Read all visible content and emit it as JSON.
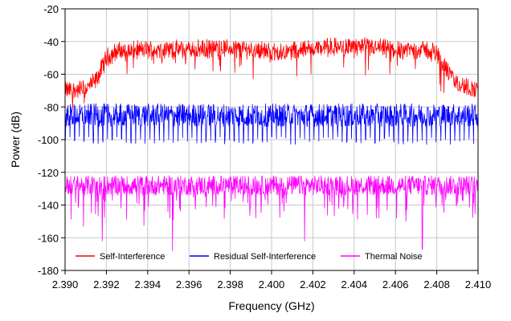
{
  "chart_data": {
    "type": "line",
    "xlabel": "Frequency (GHz)",
    "ylabel": "Power (dB)",
    "xlim": [
      2.39,
      2.41
    ],
    "ylim": [
      -180,
      -20
    ],
    "x_ticks": [
      "2.390",
      "2.392",
      "2.394",
      "2.396",
      "2.398",
      "2.400",
      "2.402",
      "2.404",
      "2.406",
      "2.408",
      "2.410"
    ],
    "y_ticks": [
      "-20",
      "-40",
      "-60",
      "-80",
      "-100",
      "-120",
      "-140",
      "-160",
      "-180"
    ],
    "grid": true,
    "legend_position": "bottom",
    "series": [
      {
        "name": "Self-Interference",
        "color": "#ff0000",
        "x": [
          2.39,
          2.391,
          2.3915,
          2.392,
          2.3925,
          2.394,
          2.396,
          2.398,
          2.3995,
          2.4,
          2.402,
          2.404,
          2.406,
          2.4075,
          2.408,
          2.4085,
          2.409,
          2.41
        ],
        "y": [
          -70,
          -69,
          -64,
          -50,
          -46,
          -45,
          -45,
          -44,
          -45,
          -47,
          -44,
          -43,
          -45,
          -45,
          -47,
          -58,
          -66,
          -70
        ],
        "fluctuation_db": 5
      },
      {
        "name": "Residual Self-Interference",
        "color": "#0000ff",
        "x": [
          2.39,
          2.41
        ],
        "y": [
          -85,
          -85
        ],
        "envelope_top": -78,
        "dip_floor": -103,
        "dip_count": 88
      },
      {
        "name": "Thermal Noise",
        "color": "#ff00ff",
        "x": [
          2.39,
          2.41
        ],
        "y": [
          -128,
          -128
        ],
        "envelope_top": -120,
        "deep_dips": [
          {
            "x": 2.3918,
            "y": -162
          },
          {
            "x": 2.3952,
            "y": -168
          },
          {
            "x": 2.4016,
            "y": -162
          },
          {
            "x": 2.4073,
            "y": -167
          }
        ]
      }
    ]
  }
}
